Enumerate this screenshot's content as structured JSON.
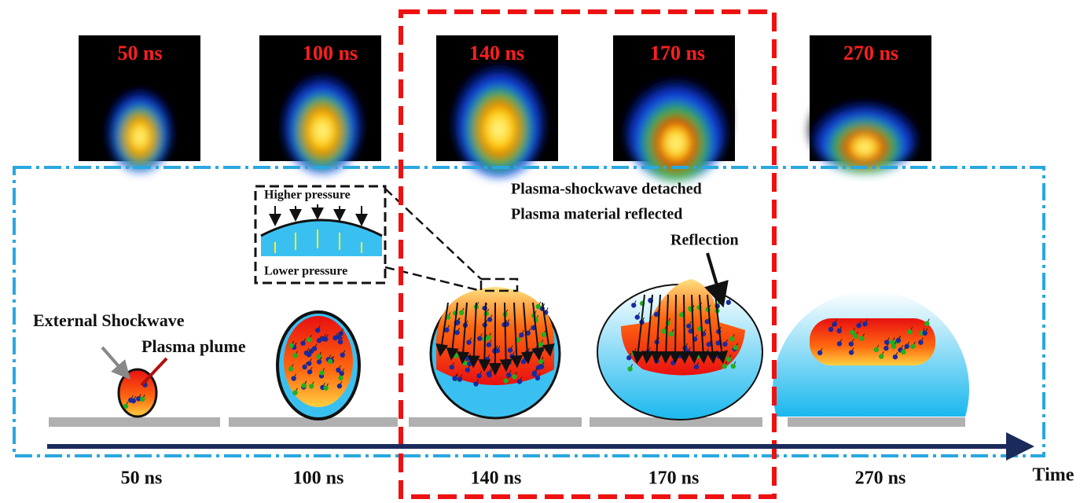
{
  "frames": [
    {
      "label": "50 ns"
    },
    {
      "label": "100 ns"
    },
    {
      "label": "140 ns"
    },
    {
      "label": "170 ns"
    },
    {
      "label": "270 ns"
    }
  ],
  "annotations": {
    "external_shockwave": "External Shockwave",
    "plasma_plume": "Plasma plume",
    "higher_pressure": "Higher pressure",
    "lower_pressure": "Lower pressure",
    "detached": "Plasma-shockwave detached",
    "reflected": "Plasma material reflected",
    "reflection": "Reflection"
  },
  "timeline": {
    "labels": [
      "50 ns",
      "100 ns",
      "140 ns",
      "170 ns",
      "270 ns"
    ],
    "axis_label": "Time"
  }
}
